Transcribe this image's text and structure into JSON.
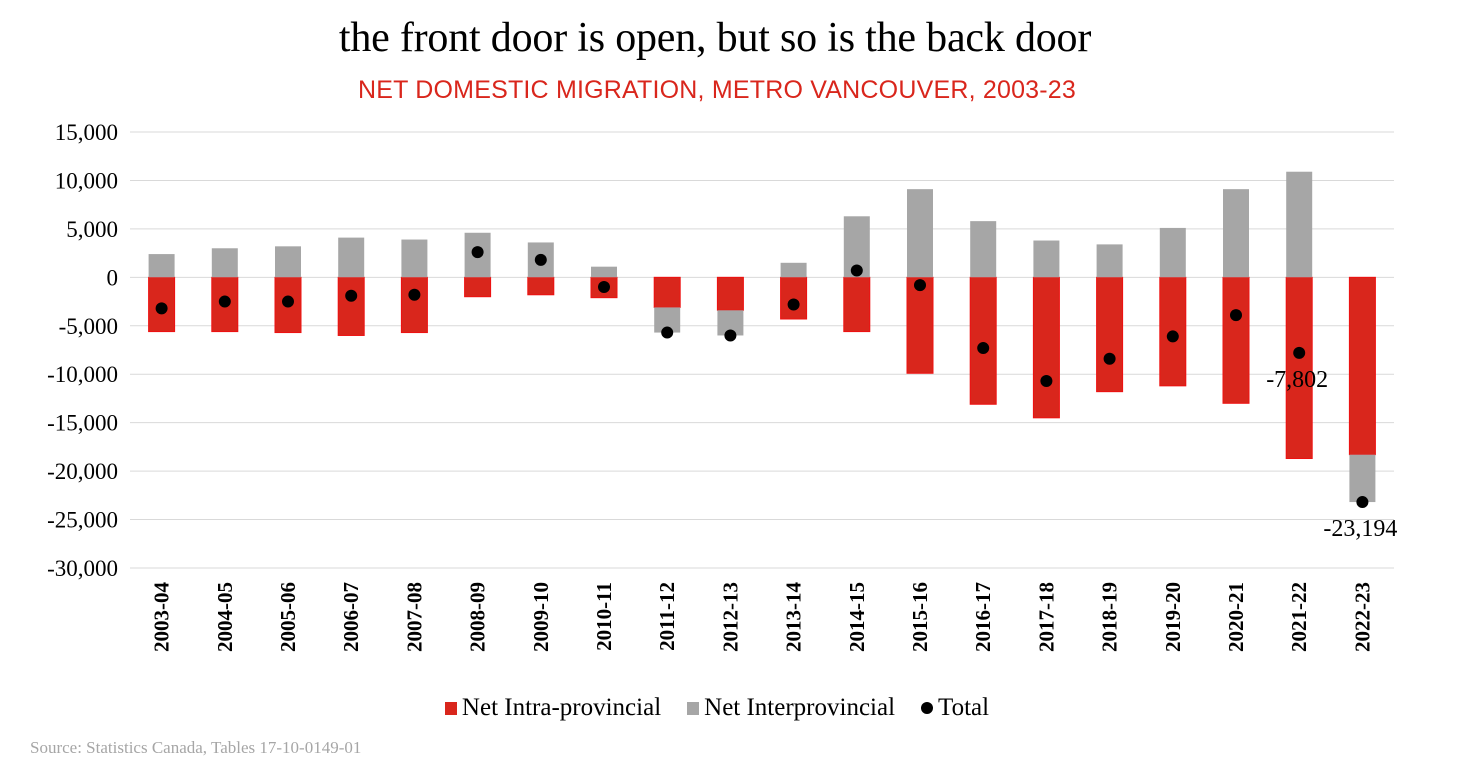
{
  "header": {
    "title": "the front door is open, but so is the back door",
    "subtitle": "NET DOMESTIC MIGRATION, METRO VANCOUVER, 2003-23"
  },
  "colors": {
    "intra": "#d9261c",
    "inter": "#a6a6a6",
    "total": "#000000",
    "subtitle": "#d9261c",
    "grid": "#d9d9d9",
    "source": "#a6a6a6"
  },
  "chart_data": {
    "type": "bar",
    "stacked": true,
    "title": "the front door is open, but so is the back door",
    "subtitle": "NET DOMESTIC MIGRATION, METRO VANCOUVER, 2003-23",
    "xlabel": "",
    "ylabel": "",
    "ylim": [
      -30000,
      15000
    ],
    "yticks": [
      15000,
      10000,
      5000,
      0,
      -5000,
      -10000,
      -15000,
      -20000,
      -25000,
      -30000
    ],
    "ytick_labels": [
      "15,000",
      "10,000",
      "5,000",
      "0",
      "-5,000",
      "-10,000",
      "-15,000",
      "-20,000",
      "-25,000",
      "-30,000"
    ],
    "grid": true,
    "legend_position": "bottom",
    "categories": [
      "2003-04",
      "2004-05",
      "2005-06",
      "2006-07",
      "2007-08",
      "2008-09",
      "2009-10",
      "2010-11",
      "2011-12",
      "2012-13",
      "2013-14",
      "2014-15",
      "2015-16",
      "2016-17",
      "2017-18",
      "2018-19",
      "2019-20",
      "2020-21",
      "2021-22",
      "2022-23"
    ],
    "series": [
      {
        "name": "Net Intra-provincial",
        "kind": "bar",
        "values": [
          -5600,
          -5600,
          -5700,
          -6000,
          -5700,
          -2000,
          -1800,
          -2100,
          -3100,
          -3400,
          -4300,
          -5600,
          -9900,
          -13100,
          -14500,
          -11800,
          -11200,
          -13000,
          -18700,
          -18300
        ]
      },
      {
        "name": "Net Interprovincial",
        "kind": "bar",
        "values": [
          2400,
          3000,
          3200,
          4100,
          3900,
          4600,
          3600,
          1100,
          -2600,
          -2600,
          1500,
          6300,
          9100,
          5800,
          3800,
          3400,
          5100,
          9100,
          10900,
          -4894
        ]
      },
      {
        "name": "Total",
        "kind": "point",
        "values": [
          -3200,
          -2500,
          -2500,
          -1900,
          -1800,
          2600,
          1800,
          -1000,
          -5700,
          -6000,
          -2800,
          700,
          -800,
          -7300,
          -10700,
          -8400,
          -6100,
          -3900,
          -7802,
          -23194
        ]
      }
    ],
    "annotations": [
      {
        "category": "2021-22",
        "series": "Total",
        "text": "-7,802"
      },
      {
        "category": "2022-23",
        "series": "Total",
        "text": "-23,194"
      }
    ]
  },
  "legend": {
    "items": [
      {
        "label": "Net Intra-provincial",
        "marker": "square"
      },
      {
        "label": "Net Interprovincial",
        "marker": "square"
      },
      {
        "label": "Total",
        "marker": "dot"
      }
    ]
  },
  "footer": {
    "source": "Source: Statistics Canada, Tables 17-10-0149-01"
  }
}
